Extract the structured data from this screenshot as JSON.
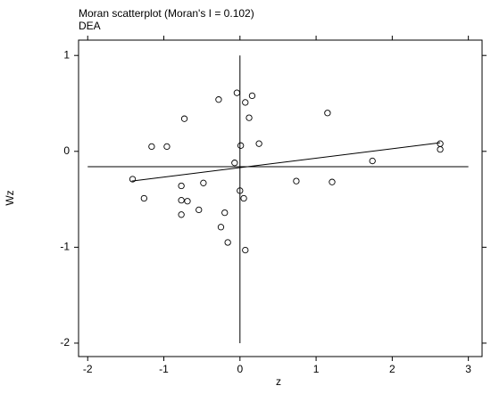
{
  "chart_data": {
    "type": "scatter",
    "title": "Moran scatterplot (Moran's I = 0.102)",
    "subtitle": "DEA",
    "x_label": "z",
    "y_label": "Wz",
    "x": [
      -1.41,
      -1.26,
      -1.16,
      -0.96,
      -0.73,
      -0.77,
      -0.77,
      -0.77,
      -0.69,
      -0.54,
      -0.48,
      -0.28,
      -0.25,
      -0.2,
      -0.16,
      -0.07,
      -0.04,
      0.01,
      0.0,
      0.05,
      0.07,
      0.12,
      0.16,
      0.07,
      0.25,
      0.74,
      1.15,
      1.21,
      1.74,
      2.63,
      2.63
    ],
    "values": [
      -0.29,
      -0.49,
      0.05,
      0.05,
      0.34,
      -0.36,
      -0.51,
      -0.66,
      -0.52,
      -0.61,
      -0.33,
      0.54,
      -0.79,
      -0.64,
      -0.95,
      -0.12,
      0.61,
      0.06,
      -0.41,
      -0.49,
      0.51,
      0.35,
      0.58,
      -1.03,
      0.08,
      -0.31,
      0.4,
      -0.32,
      -0.1,
      0.08,
      0.02
    ],
    "fit_line": {
      "x": [
        -1.42,
        2.63
      ],
      "y": [
        -0.31,
        0.09
      ]
    },
    "reference_lines": {
      "x": 0,
      "y": -0.16
    },
    "xlim": [
      -2.12,
      3.18
    ],
    "ylim": [
      -2.14,
      1.16
    ],
    "xticks": [
      -2,
      -1,
      0,
      1,
      2,
      3
    ],
    "yticks": [
      -2,
      -1,
      0,
      1
    ]
  }
}
